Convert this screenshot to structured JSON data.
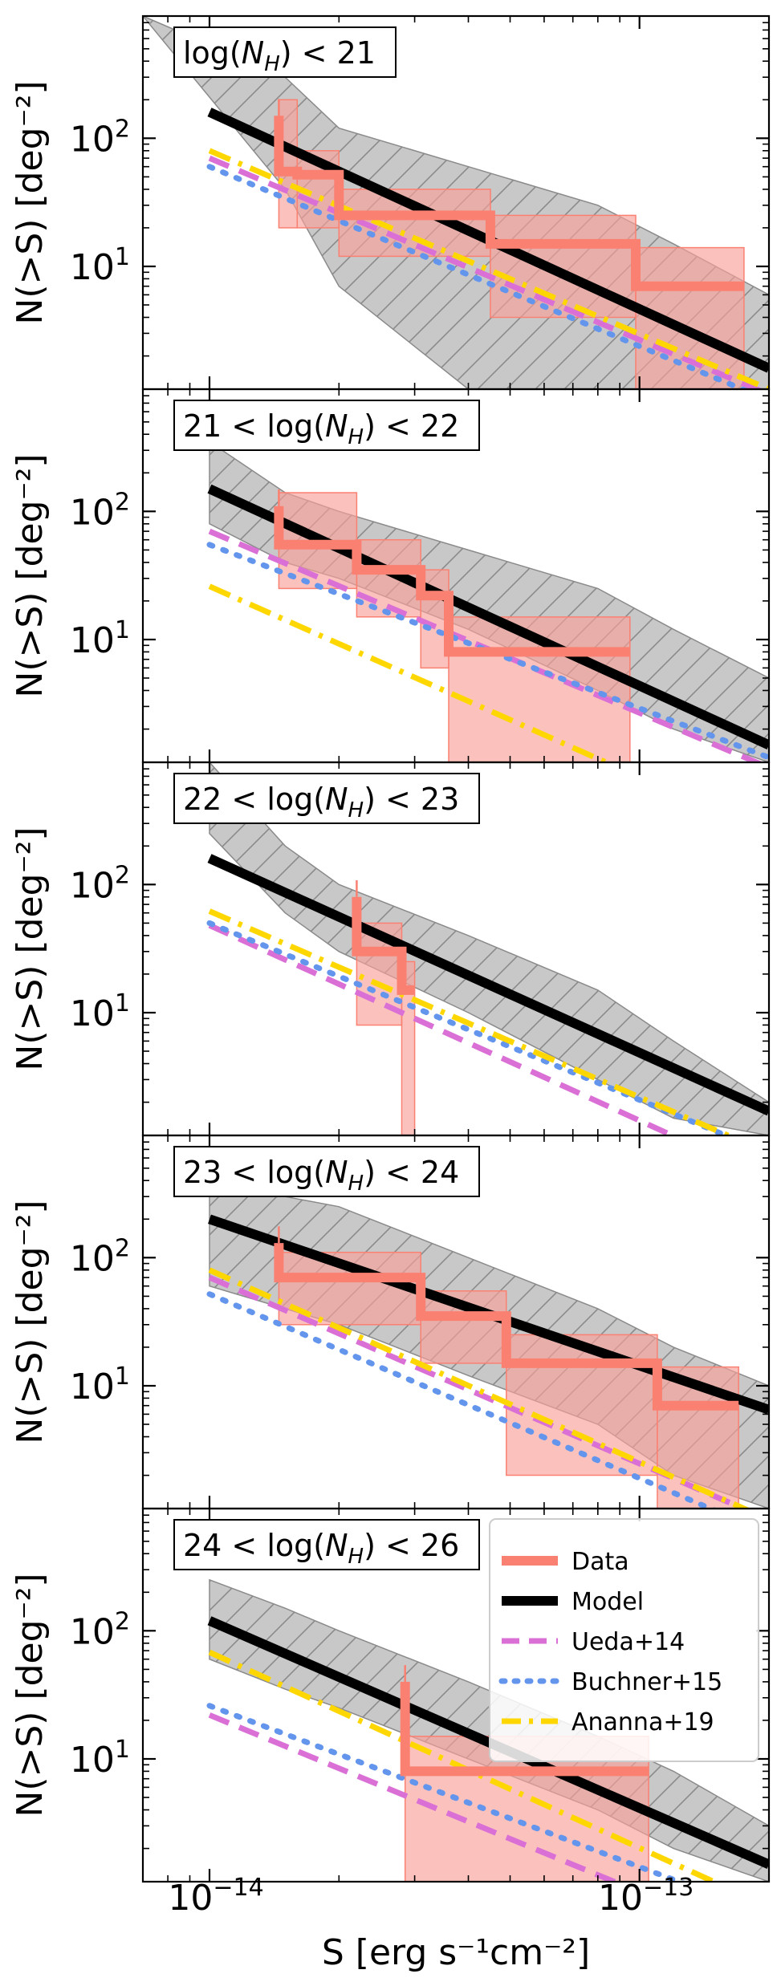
{
  "chart_data": {
    "type": "line",
    "x_scale": "log",
    "y_scale": "log",
    "xlim": [
      7e-15,
      2e-13
    ],
    "ylim": [
      1.1,
      900
    ],
    "xlabel": "S [erg s⁻¹cm⁻²]",
    "x_tick_labels": [
      {
        "value": 1e-14,
        "base": "10",
        "exp": "−14"
      },
      {
        "value": 1e-13,
        "base": "10",
        "exp": "−13"
      }
    ],
    "y_tick_labels": [
      {
        "value": 100,
        "base": "10",
        "exp": "2"
      },
      {
        "value": 10,
        "base": "10",
        "exp": "1"
      }
    ],
    "colors": {
      "data": "#fa8072",
      "data_band": "#f9a19a",
      "model": "#000000",
      "model_band": "#c8c8c8",
      "ueda": "#da70d6",
      "buchner": "#6495ed",
      "ananna": "#ffd700"
    },
    "legend": {
      "placement": "top-right of bottom panel",
      "entries": [
        {
          "key": "data",
          "label": "Data",
          "style": "solid",
          "color": "#fa8072"
        },
        {
          "key": "model",
          "label": "Model",
          "style": "solid",
          "color": "#000000"
        },
        {
          "key": "ueda",
          "label": "Ueda+14",
          "style": "dashed",
          "color": "#da70d6"
        },
        {
          "key": "buchner",
          "label": "Buchner+15",
          "style": "dotted",
          "color": "#6495ed"
        },
        {
          "key": "ananna",
          "label": "Ananna+19",
          "style": "dashdot",
          "color": "#ffd700"
        }
      ]
    },
    "panels": [
      {
        "id": "p1",
        "label": {
          "pre": "log(",
          "sub": "H",
          "post": ") < 21"
        },
        "ylabel": "N(>S) [deg⁻²]",
        "model": {
          "x": [
            1e-14,
            2e-13
          ],
          "y": [
            160,
            1.6
          ]
        },
        "model_band": {
          "x": [
            7e-15,
            1.5e-14,
            2e-14,
            4e-14,
            8e-14,
            1.2e-13,
            2e-13
          ],
          "upper": [
            900,
            300,
            120,
            60,
            30,
            15,
            6
          ],
          "lower": [
            900,
            40,
            7,
            1.1,
            1.1,
            1.1,
            1.1
          ]
        },
        "ueda": {
          "x": [
            1e-14,
            2e-13
          ],
          "y": [
            70,
            1.0
          ]
        },
        "buchner": {
          "x": [
            1e-14,
            2e-13
          ],
          "y": [
            60,
            0.9
          ]
        },
        "ananna": {
          "x": [
            1e-14,
            2e-13
          ],
          "y": [
            80,
            1.1
          ]
        },
        "data": {
          "x": [
            1.45e-14,
            1.6e-14,
            2e-14,
            4.5e-14,
            9.8e-14,
            1.75e-13
          ],
          "y": [
            55,
            52,
            25,
            15,
            7,
            7
          ]
        },
        "data_band": {
          "x": [
            1.45e-14,
            1.6e-14,
            2e-14,
            4.5e-14,
            9.8e-14,
            1.75e-13
          ],
          "upper": [
            200,
            80,
            40,
            25,
            14,
            14
          ],
          "lower": [
            20,
            20,
            12,
            4,
            1.1,
            1.1
          ]
        },
        "data_start_spike": {
          "x": 1.45e-14,
          "y_top": 150
        }
      },
      {
        "id": "p2",
        "label": {
          "pre": "21 < log(",
          "sub": "H",
          "post": ") < 22"
        },
        "ylabel": "N(>S) [deg⁻²]",
        "model": {
          "x": [
            1e-14,
            2e-13
          ],
          "y": [
            150,
            1.5
          ]
        },
        "model_band": {
          "x": [
            1e-14,
            1.5e-14,
            2e-14,
            4e-14,
            8e-14,
            1.2e-13,
            2e-13
          ],
          "upper": [
            350,
            140,
            100,
            50,
            25,
            12,
            5
          ],
          "lower": [
            80,
            40,
            30,
            12,
            4,
            2,
            1.1
          ]
        },
        "ueda": {
          "x": [
            1e-14,
            2e-13
          ],
          "y": [
            70,
            1.0
          ]
        },
        "buchner": {
          "x": [
            1e-14,
            2e-13
          ],
          "y": [
            55,
            1.2
          ]
        },
        "ananna": {
          "x": [
            1e-14,
            2e-13
          ],
          "y": [
            26,
            0.3
          ]
        },
        "data": {
          "x": [
            1.45e-14,
            2.2e-14,
            3.1e-14,
            3.6e-14,
            9.5e-14
          ],
          "y": [
            55,
            35,
            22,
            8,
            8
          ]
        },
        "data_band": {
          "x": [
            1.45e-14,
            2.2e-14,
            3.1e-14,
            3.6e-14,
            9.5e-14
          ],
          "upper": [
            140,
            60,
            35,
            15,
            15
          ],
          "lower": [
            25,
            15,
            6,
            1.1,
            1.1
          ]
        },
        "data_start_spike": {
          "x": 1.45e-14,
          "y_top": 110
        }
      },
      {
        "id": "p3",
        "label": {
          "pre": "22 < log(",
          "sub": "H",
          "post": ") < 23"
        },
        "ylabel": "N(>S) [deg⁻²]",
        "model": {
          "x": [
            1e-14,
            2e-13
          ],
          "y": [
            160,
            1.7
          ]
        },
        "model_band": {
          "x": [
            1e-14,
            1.5e-14,
            2e-14,
            4e-14,
            8e-14,
            1.2e-13,
            2e-13
          ],
          "upper": [
            900,
            200,
            100,
            40,
            15,
            6,
            2
          ],
          "lower": [
            250,
            60,
            30,
            10,
            3,
            1.5,
            1.1
          ]
        },
        "ueda": {
          "x": [
            1e-14,
            2e-13
          ],
          "y": [
            48,
            0.5
          ]
        },
        "buchner": {
          "x": [
            1e-14,
            2e-13
          ],
          "y": [
            50,
            0.8
          ]
        },
        "ananna": {
          "x": [
            1e-14,
            2e-13
          ],
          "y": [
            62,
            0.8
          ]
        },
        "data": {
          "x": [
            2.2e-14,
            2.8e-14,
            3e-14
          ],
          "y": [
            30,
            15,
            15
          ]
        },
        "data_band": {
          "x": [
            2.2e-14,
            2.8e-14,
            3e-14
          ],
          "upper": [
            50,
            25,
            25
          ],
          "lower": [
            8,
            1.1,
            1.1
          ]
        },
        "data_start_spike": {
          "x": 2.2e-14,
          "y_top": 80
        }
      },
      {
        "id": "p4",
        "label": {
          "pre": "23 < log(",
          "sub": "H",
          "post": ") < 24"
        },
        "ylabel": "N(>S) [deg⁻²]",
        "model": {
          "x": [
            1e-14,
            2e-13
          ],
          "y": [
            200,
            6.5
          ]
        },
        "model_band": {
          "x": [
            1e-14,
            1.5e-14,
            2e-14,
            4e-14,
            8e-14,
            1.2e-13,
            2e-13
          ],
          "upper": [
            500,
            300,
            250,
            100,
            40,
            20,
            10
          ],
          "lower": [
            60,
            40,
            30,
            12,
            5,
            2,
            1.1
          ]
        },
        "ueda": {
          "x": [
            1e-14,
            2e-13
          ],
          "y": [
            70,
            0.9
          ]
        },
        "buchner": {
          "x": [
            1e-14,
            2e-13
          ],
          "y": [
            52,
            0.7
          ]
        },
        "ananna": {
          "x": [
            1e-14,
            2e-13
          ],
          "y": [
            80,
            0.9
          ]
        },
        "data": {
          "x": [
            1.45e-14,
            3.1e-14,
            4.9e-14,
            1.1e-13,
            1.7e-13
          ],
          "y": [
            70,
            35,
            15,
            7,
            7
          ]
        },
        "data_band": {
          "x": [
            1.45e-14,
            3.1e-14,
            4.9e-14,
            1.1e-13,
            1.7e-13
          ],
          "upper": [
            110,
            55,
            25,
            14,
            14
          ],
          "lower": [
            30,
            15,
            2,
            1.1,
            1.1
          ]
        },
        "data_start_spike": {
          "x": 1.45e-14,
          "y_top": 130
        }
      },
      {
        "id": "p5",
        "label": {
          "pre": "24 < log(",
          "sub": "H",
          "post": ") < 26"
        },
        "ylabel": "N(>S) [deg⁻²]",
        "model": {
          "x": [
            1e-14,
            2e-13
          ],
          "y": [
            120,
            1.5
          ]
        },
        "model_band": {
          "x": [
            1e-14,
            1.5e-14,
            2e-14,
            4e-14,
            8e-14,
            1.2e-13,
            2e-13
          ],
          "upper": [
            250,
            150,
            100,
            40,
            15,
            8,
            3
          ],
          "lower": [
            60,
            35,
            25,
            10,
            4,
            2,
            1.1
          ]
        },
        "ueda": {
          "x": [
            1e-14,
            2e-13
          ],
          "y": [
            22,
            0.35
          ]
        },
        "buchner": {
          "x": [
            1e-14,
            2e-13
          ],
          "y": [
            26,
            0.6
          ]
        },
        "ananna": {
          "x": [
            1e-14,
            2e-13
          ],
          "y": [
            68,
            0.7
          ]
        },
        "data": {
          "x": [
            2.85e-14,
            1.05e-13
          ],
          "y": [
            8,
            8
          ]
        },
        "data_band": {
          "x": [
            2.85e-14,
            1.05e-13
          ],
          "upper": [
            15,
            15
          ],
          "lower": [
            1.1,
            1.1
          ]
        },
        "data_start_spike": {
          "x": 2.85e-14,
          "y_top": 40
        }
      }
    ]
  }
}
